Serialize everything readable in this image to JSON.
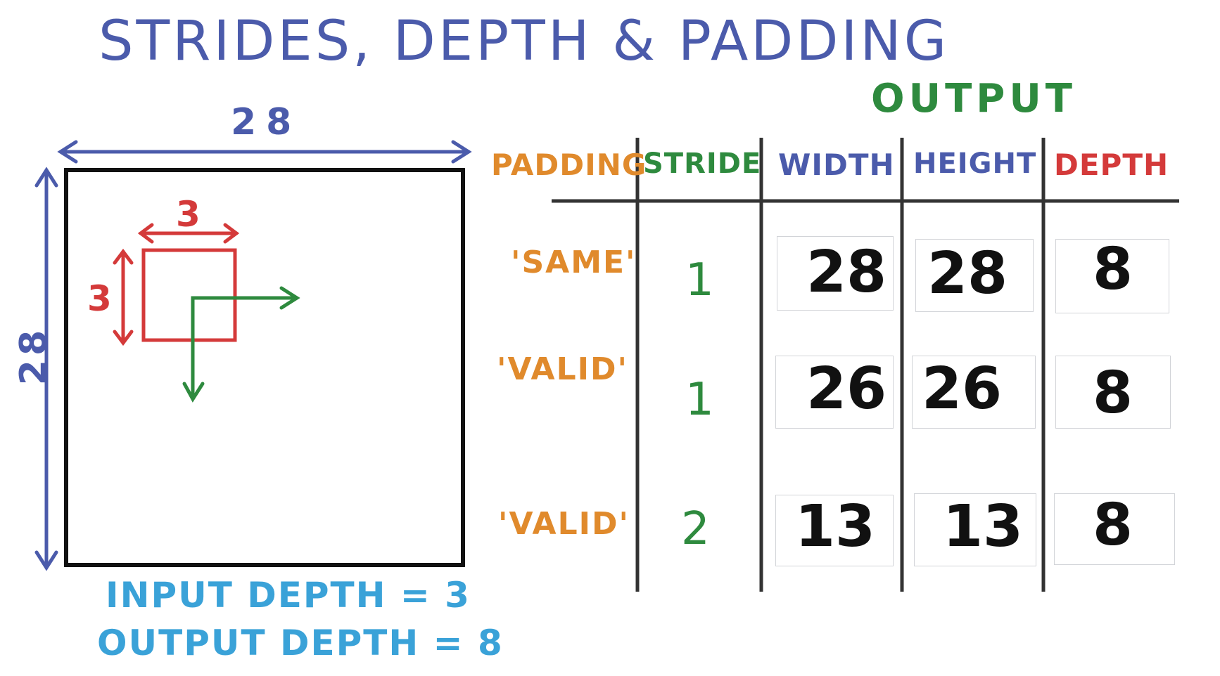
{
  "title": "STRIDES, DEPTH & PADDING",
  "input": {
    "width_label": "28",
    "height_label": "28",
    "kernel_width_label": "3",
    "kernel_height_label": "3",
    "input_depth_note": "INPUT DEPTH = 3",
    "output_depth_note": "OUTPUT DEPTH = 8"
  },
  "table": {
    "output_title": "OUTPUT",
    "headers": {
      "padding": "PADDING",
      "stride": "STRIDE",
      "width": "WIDTH",
      "height": "HEIGHT",
      "depth": "DEPTH"
    },
    "rows": [
      {
        "padding": "'SAME'",
        "stride": "1",
        "width": "28",
        "height": "28",
        "depth": "8"
      },
      {
        "padding": "'VALID'",
        "stride": "1",
        "width": "26",
        "height": "26",
        "depth": "8"
      },
      {
        "padding": "'VALID'",
        "stride": "2",
        "width": "13",
        "height": "13",
        "depth": "8"
      }
    ]
  },
  "colors": {
    "title_blue": "#4b5bab",
    "padding_orange": "#e08a2c",
    "stride_green": "#2e8a3e",
    "depth_red": "#d43a3a",
    "note_lightblue": "#3aa2d8",
    "kernel_red": "#d43a3a",
    "arrow_green": "#2e8a3e"
  }
}
